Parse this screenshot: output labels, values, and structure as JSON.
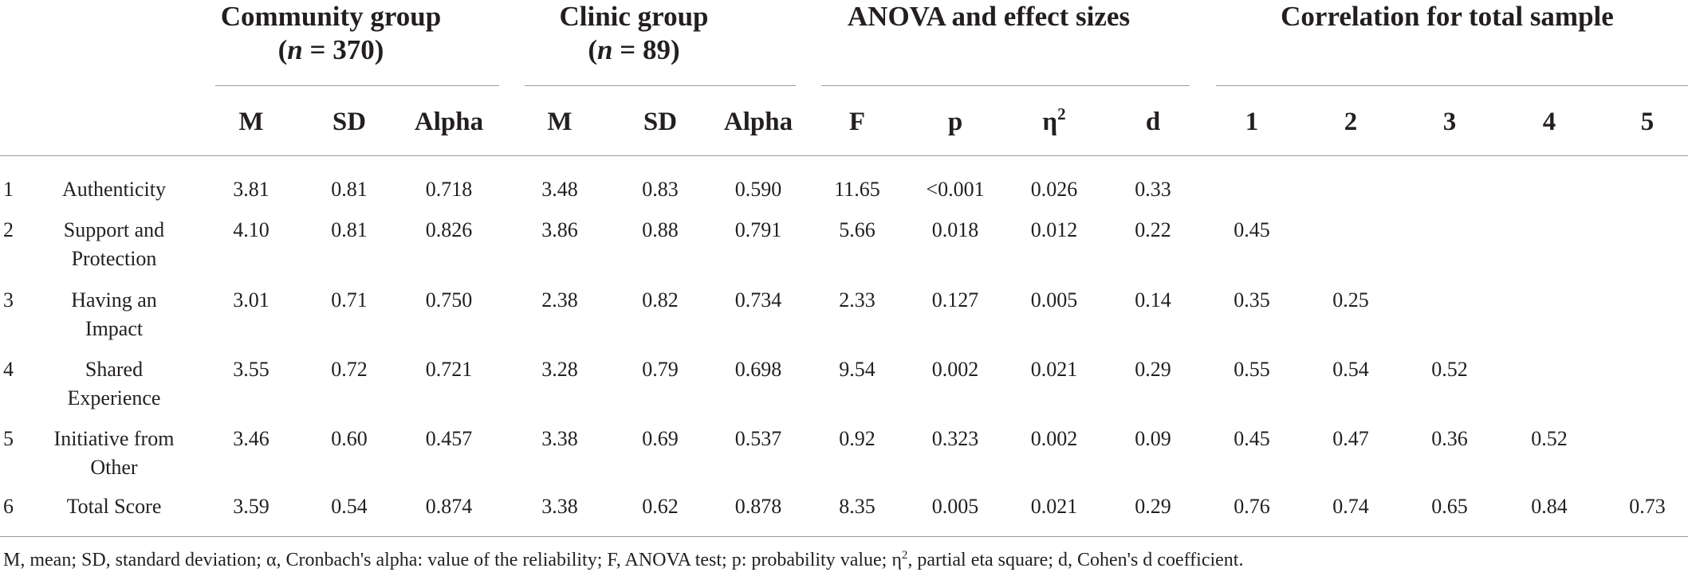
{
  "groups": {
    "community": {
      "title": "Community group",
      "n_label": "n",
      "n_value": " = 370"
    },
    "clinic": {
      "title": "Clinic group",
      "n_label": "n",
      "n_value": " = 89"
    },
    "anova": {
      "title": "ANOVA and effect sizes"
    },
    "correlation": {
      "title": "Correlation for total sample"
    }
  },
  "columns": {
    "community_m": "M",
    "community_sd": "SD",
    "community_alpha": "Alpha",
    "clinic_m": "M",
    "clinic_sd": "SD",
    "clinic_alpha": "Alpha",
    "anova_f": "F",
    "anova_p": "p",
    "anova_eta": "η",
    "anova_eta_sup": "2",
    "anova_d": "d",
    "corr_1": "1",
    "corr_2": "2",
    "corr_3": "3",
    "corr_4": "4",
    "corr_5": "5"
  },
  "rows": [
    {
      "num": "1",
      "label_1": "Authenticity",
      "label_2": "",
      "cm": "3.81",
      "csd": "0.81",
      "ca": "0.718",
      "km": "3.48",
      "ksd": "0.83",
      "ka": "0.590",
      "f": "11.65",
      "p": "<0.001",
      "eta": "0.026",
      "d": "0.33",
      "r1": "",
      "r2": "",
      "r3": "",
      "r4": "",
      "r5": ""
    },
    {
      "num": "2",
      "label_1": "Support and",
      "label_2": "Protection",
      "cm": "4.10",
      "csd": "0.81",
      "ca": "0.826",
      "km": "3.86",
      "ksd": "0.88",
      "ka": "0.791",
      "f": "5.66",
      "p": "0.018",
      "eta": "0.012",
      "d": "0.22",
      "r1": "0.45",
      "r2": "",
      "r3": "",
      "r4": "",
      "r5": ""
    },
    {
      "num": "3",
      "label_1": "Having an",
      "label_2": "Impact",
      "cm": "3.01",
      "csd": "0.71",
      "ca": "0.750",
      "km": "2.38",
      "ksd": "0.82",
      "ka": "0.734",
      "f": "2.33",
      "p": "0.127",
      "eta": "0.005",
      "d": "0.14",
      "r1": "0.35",
      "r2": "0.25",
      "r3": "",
      "r4": "",
      "r5": ""
    },
    {
      "num": "4",
      "label_1": "Shared",
      "label_2": "Experience",
      "cm": "3.55",
      "csd": "0.72",
      "ca": "0.721",
      "km": "3.28",
      "ksd": "0.79",
      "ka": "0.698",
      "f": "9.54",
      "p": "0.002",
      "eta": "0.021",
      "d": "0.29",
      "r1": "0.55",
      "r2": "0.54",
      "r3": "0.52",
      "r4": "",
      "r5": ""
    },
    {
      "num": "5",
      "label_1": "Initiative from",
      "label_2": "Other",
      "cm": "3.46",
      "csd": "0.60",
      "ca": "0.457",
      "km": "3.38",
      "ksd": "0.69",
      "ka": "0.537",
      "f": "0.92",
      "p": "0.323",
      "eta": "0.002",
      "d": "0.09",
      "r1": "0.45",
      "r2": "0.47",
      "r3": "0.36",
      "r4": "0.52",
      "r5": ""
    },
    {
      "num": "6",
      "label_1": "Total Score",
      "label_2": "",
      "cm": "3.59",
      "csd": "0.54",
      "ca": "0.874",
      "km": "3.38",
      "ksd": "0.62",
      "ka": "0.878",
      "f": "8.35",
      "p": "0.005",
      "eta": "0.021",
      "d": "0.29",
      "r1": "0.76",
      "r2": "0.74",
      "r3": "0.65",
      "r4": "0.84",
      "r5": "0.73"
    }
  ],
  "footnote": {
    "part_1": "M, mean; SD, standard deviation; α, Cronbach's alpha: value of the reliability; F, ANOVA test; p: probability value; η",
    "sup": "2",
    "part_2": ", partial eta square; d, Cohen's d coefficient."
  }
}
